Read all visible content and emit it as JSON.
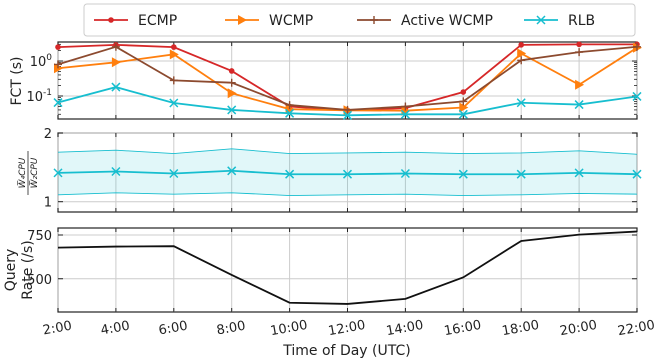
{
  "chart_data": [
    {
      "type": "line",
      "panel": "fct",
      "ylabel": "FCT (s)",
      "yscale": "log",
      "ylim": [
        0.022,
        3.5
      ],
      "yticks": [
        {
          "v": 1,
          "label": "10^0"
        },
        {
          "v": 0.1,
          "label": "10^-1"
        }
      ],
      "grid": true,
      "legend": "top",
      "x": [
        "2:00",
        "4:00",
        "6:00",
        "8:00",
        "10:00",
        "12:00",
        "14:00",
        "16:00",
        "18:00",
        "20:00",
        "22:00"
      ],
      "series": [
        {
          "name": "ECMP",
          "color": "#d62728",
          "marker": "dot",
          "values": [
            2.5,
            2.9,
            2.5,
            0.52,
            0.05,
            0.039,
            0.045,
            0.13,
            2.9,
            3.0,
            3.0
          ]
        },
        {
          "name": "WCMP",
          "color": "#ff7f0e",
          "marker": "triangle-right",
          "values": [
            0.62,
            0.92,
            1.55,
            0.12,
            0.042,
            0.039,
            0.038,
            0.047,
            1.65,
            0.21,
            2.4
          ]
        },
        {
          "name": "Active WCMP",
          "color": "#8c4a2f",
          "marker": "plus",
          "values": [
            0.8,
            2.55,
            0.28,
            0.24,
            0.055,
            0.04,
            0.05,
            0.07,
            1.05,
            1.8,
            2.55
          ]
        },
        {
          "name": "RLB",
          "color": "#17becf",
          "marker": "x",
          "values": [
            0.065,
            0.18,
            0.063,
            0.04,
            0.032,
            0.028,
            0.03,
            0.03,
            0.064,
            0.057,
            0.097
          ]
        }
      ]
    },
    {
      "type": "line",
      "panel": "ratio",
      "ylabel": "W4CPU / W2CPU",
      "ylabel_num": "W̅₄CPU",
      "ylim": [
        0.85,
        2.0
      ],
      "yticks": [
        {
          "v": 1,
          "label": "1"
        },
        {
          "v": 2,
          "label": "2"
        }
      ],
      "grid": true,
      "x": [
        "2:00",
        "4:00",
        "6:00",
        "8:00",
        "10:00",
        "12:00",
        "14:00",
        "16:00",
        "18:00",
        "20:00",
        "22:00"
      ],
      "series": [
        {
          "name": "RLB",
          "color": "#17becf",
          "marker": "x",
          "values": [
            1.42,
            1.44,
            1.41,
            1.45,
            1.4,
            1.4,
            1.41,
            1.4,
            1.4,
            1.42,
            1.4
          ],
          "upper": [
            1.72,
            1.75,
            1.7,
            1.77,
            1.7,
            1.71,
            1.72,
            1.7,
            1.71,
            1.74,
            1.69
          ],
          "lower": [
            1.1,
            1.13,
            1.11,
            1.13,
            1.09,
            1.1,
            1.11,
            1.09,
            1.1,
            1.12,
            1.11
          ]
        }
      ]
    },
    {
      "type": "line",
      "panel": "rate",
      "ylabel": "Query\nRate (/s)",
      "xlabel": "Time of Day (UTC)",
      "ylim": [
        310,
        790
      ],
      "yticks": [
        {
          "v": 500,
          "label": "500"
        },
        {
          "v": 750,
          "label": "750"
        }
      ],
      "grid": true,
      "x": [
        "2:00",
        "4:00",
        "6:00",
        "8:00",
        "10:00",
        "12:00",
        "14:00",
        "16:00",
        "18:00",
        "20:00",
        "22:00"
      ],
      "series": [
        {
          "color": "#111111",
          "marker": "none",
          "values": [
            678,
            684,
            686,
            522,
            363,
            356,
            385,
            508,
            716,
            752,
            770
          ]
        }
      ]
    }
  ]
}
